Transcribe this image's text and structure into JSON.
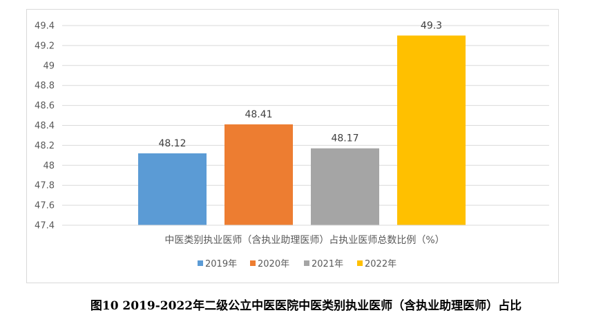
{
  "chart_data": {
    "type": "bar",
    "category": "中医类别执业医师（含执业助理医师）占执业医师总数比例（%）",
    "series": [
      {
        "name": "2019年",
        "value": 48.12,
        "color": "#5b9bd5"
      },
      {
        "name": "2020年",
        "value": 48.41,
        "color": "#ed7d31"
      },
      {
        "name": "2021年",
        "value": 48.17,
        "color": "#a5a5a5"
      },
      {
        "name": "2022年",
        "value": 49.3,
        "color": "#ffc000"
      }
    ],
    "ylim": [
      47.4,
      49.4
    ],
    "yticks": [
      47.4,
      47.6,
      47.8,
      48,
      48.2,
      48.4,
      48.6,
      48.8,
      49,
      49.2,
      49.4
    ],
    "grid": true,
    "legend_position": "bottom"
  },
  "caption": "图10 2019-2022年二级公立中医医院中医类别执业医师（含执业助理医师）占比"
}
